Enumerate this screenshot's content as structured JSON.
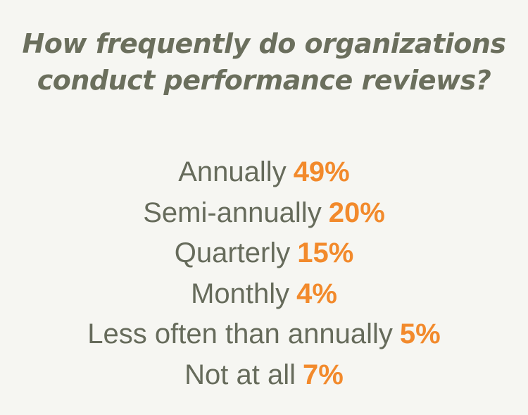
{
  "colors": {
    "background": "#f6f6f2",
    "title": "#6b6f5d",
    "label": "#666b5b",
    "value": "#f28a2c"
  },
  "chart_data": {
    "type": "table",
    "title": "How frequently do organizations conduct performance reviews?",
    "title_lines": [
      "How frequently do organizations",
      "conduct performance reviews?"
    ],
    "unit": "%",
    "categories": [
      "Annually",
      "Semi-annually",
      "Quarterly",
      "Monthly",
      "Less often than annually",
      "Not at all"
    ],
    "values": [
      49,
      20,
      15,
      4,
      5,
      7
    ],
    "value_labels": [
      "49%",
      "20%",
      "15%",
      "4%",
      "5%",
      "7%"
    ]
  }
}
